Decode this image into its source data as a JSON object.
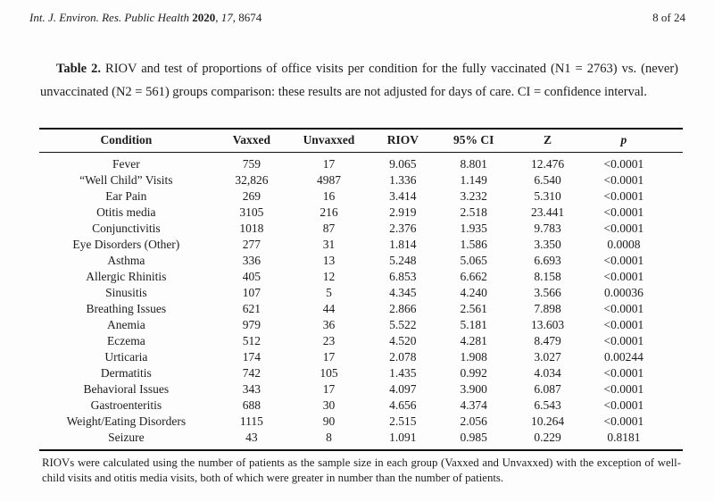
{
  "header": {
    "journal_name": "Int. J. Environ. Res. Public Health ",
    "year": "2020",
    "sep1": ", ",
    "volume": "17",
    "sep2": ", 8674",
    "page_indicator": "8 of 24"
  },
  "caption": {
    "label": "Table 2.",
    "text": " RIOV and test of proportions of office visits per condition for the fully vaccinated (N1 = 2763) vs. (never) unvaccinated (N2 = 561) groups comparison: these results are not adjusted for days of care. CI = confidence interval."
  },
  "table": {
    "columns": [
      "Condition",
      "Vaxxed",
      "Unvaxxed",
      "RIOV",
      "95% CI",
      "Z",
      "p"
    ],
    "rows": [
      [
        "Fever",
        "759",
        "17",
        "9.065",
        "8.801",
        "12.476",
        "<0.0001"
      ],
      [
        "“Well Child” Visits",
        "32,826",
        "4987",
        "1.336",
        "1.149",
        "6.540",
        "<0.0001"
      ],
      [
        "Ear Pain",
        "269",
        "16",
        "3.414",
        "3.232",
        "5.310",
        "<0.0001"
      ],
      [
        "Otitis media",
        "3105",
        "216",
        "2.919",
        "2.518",
        "23.441",
        "<0.0001"
      ],
      [
        "Conjunctivitis",
        "1018",
        "87",
        "2.376",
        "1.935",
        "9.783",
        "<0.0001"
      ],
      [
        "Eye Disorders (Other)",
        "277",
        "31",
        "1.814",
        "1.586",
        "3.350",
        "0.0008"
      ],
      [
        "Asthma",
        "336",
        "13",
        "5.248",
        "5.065",
        "6.693",
        "<0.0001"
      ],
      [
        "Allergic Rhinitis",
        "405",
        "12",
        "6.853",
        "6.662",
        "8.158",
        "<0.0001"
      ],
      [
        "Sinusitis",
        "107",
        "5",
        "4.345",
        "4.240",
        "3.566",
        "0.00036"
      ],
      [
        "Breathing Issues",
        "621",
        "44",
        "2.866",
        "2.561",
        "7.898",
        "<0.0001"
      ],
      [
        "Anemia",
        "979",
        "36",
        "5.522",
        "5.181",
        "13.603",
        "<0.0001"
      ],
      [
        "Eczema",
        "512",
        "23",
        "4.520",
        "4.281",
        "8.479",
        "<0.0001"
      ],
      [
        "Urticaria",
        "174",
        "17",
        "2.078",
        "1.908",
        "3.027",
        "0.00244"
      ],
      [
        "Dermatitis",
        "742",
        "105",
        "1.435",
        "0.992",
        "4.034",
        "<0.0001"
      ],
      [
        "Behavioral Issues",
        "343",
        "17",
        "4.097",
        "3.900",
        "6.087",
        "<0.0001"
      ],
      [
        "Gastroenteritis",
        "688",
        "30",
        "4.656",
        "4.374",
        "6.543",
        "<0.0001"
      ],
      [
        "Weight/Eating Disorders",
        "1115",
        "90",
        "2.515",
        "2.056",
        "10.264",
        "<0.0001"
      ],
      [
        "Seizure",
        "43",
        "8",
        "1.091",
        "0.985",
        "0.229",
        "0.8181"
      ]
    ],
    "footnote": "RIOVs were calculated using the number of patients as the sample size in each group (Vaxxed and Unvaxxed) with the exception of well-child visits and otitis media visits, both of which were greater in number than the number of patients."
  }
}
